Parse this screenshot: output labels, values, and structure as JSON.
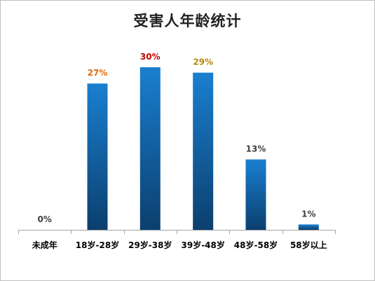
{
  "chart_data": {
    "type": "bar",
    "title": "受害人年龄统计",
    "categories": [
      "未成年",
      "18岁-28岁",
      "29岁-38岁",
      "39岁-48岁",
      "48岁-58岁",
      "58岁以上"
    ],
    "values": [
      0,
      27,
      30,
      29,
      13,
      1
    ],
    "data_labels": [
      "0%",
      "27%",
      "30%",
      "29%",
      "13%",
      "1%"
    ],
    "data_label_colors": [
      "#404040",
      "#e46c0a",
      "#c00000",
      "#b8860b",
      "#404040",
      "#404040"
    ],
    "bar_color_top": "#1a7fd0",
    "bar_color_bottom": "#0b3f6e",
    "ylim": [
      0,
      30
    ],
    "grid": false,
    "legend": "none",
    "xlabel": "",
    "ylabel": ""
  }
}
